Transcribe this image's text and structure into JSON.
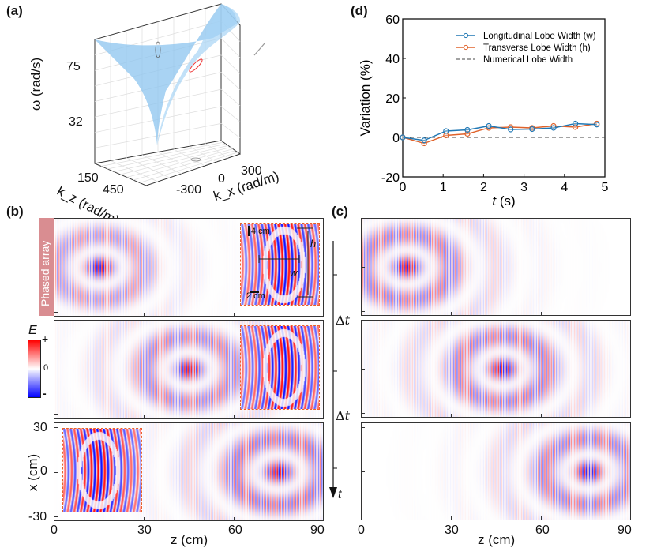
{
  "panels": {
    "a": {
      "label": "(a)",
      "zlabel": "ω (rad/s)",
      "zticks": [
        "75",
        "32"
      ],
      "kz_label": "k_z (rad/m)",
      "kz_ticks": [
        "150",
        "450"
      ],
      "kx_label": "k_x (rad/m)",
      "kx_ticks": [
        "-300",
        "0",
        "300"
      ],
      "surface_color": "#8cc4ef"
    },
    "b": {
      "label": "(b)",
      "phased_array_label": "Phased array",
      "ylabel": "x (cm)",
      "yticks": [
        "30",
        "0",
        "-30"
      ],
      "xlabel": "z (cm)",
      "xticks": [
        "0",
        "30",
        "60",
        "90"
      ],
      "colorbar": {
        "title": "E",
        "plus": "+",
        "zero": "0",
        "minus": "-"
      },
      "inset_annotations": {
        "h": "h",
        "w": "w",
        "scale_v": "4 cm",
        "scale_h": "2 cm"
      },
      "time_axis": {
        "step1": "Δt",
        "step2": "Δt",
        "label": "t"
      },
      "frames": [
        {
          "pulse_center_z_cm": 15,
          "inset_position": "right"
        },
        {
          "pulse_center_z_cm": 45,
          "inset_position": "right"
        },
        {
          "pulse_center_z_cm": 75,
          "inset_position": "left"
        }
      ]
    },
    "c": {
      "label": "(c)",
      "xlabel": "z (cm)",
      "xticks": [
        "0",
        "30",
        "60",
        "90"
      ],
      "frames": [
        {
          "pulse_center_z_cm": 15
        },
        {
          "pulse_center_z_cm": 47
        },
        {
          "pulse_center_z_cm": 76
        }
      ]
    },
    "d": {
      "label": "(d)"
    }
  },
  "chart_data": {
    "type": "line",
    "title": "",
    "xlabel": "t (s)",
    "ylabel": "Variation (%)",
    "xlim": [
      0,
      5
    ],
    "ylim": [
      -20,
      60
    ],
    "xticks": [
      0,
      1,
      2,
      3,
      4,
      5
    ],
    "yticks": [
      -20,
      0,
      20,
      40,
      60
    ],
    "grid": false,
    "legend_position": "top-right",
    "x": [
      0,
      0.53,
      1.07,
      1.6,
      2.13,
      2.67,
      3.2,
      3.73,
      4.27,
      4.8
    ],
    "series": [
      {
        "name": "Longitudinal Lobe Width (w)",
        "color": "#1f77b4",
        "marker": "circle",
        "values": [
          0,
          -1.5,
          3.2,
          3.8,
          5.8,
          4.0,
          4.2,
          4.8,
          7.0,
          6.5
        ]
      },
      {
        "name": "Transverse Lobe Width (h)",
        "color": "#e0622a",
        "marker": "circle",
        "values": [
          0,
          -3,
          1.0,
          1.8,
          4.8,
          5.2,
          4.8,
          5.8,
          5.2,
          7.0
        ]
      },
      {
        "name": "Numerical Lobe Width",
        "color": "#444444",
        "style": "dashed",
        "values": [
          0,
          0,
          0,
          0,
          0,
          0,
          0,
          0,
          0,
          0
        ]
      }
    ]
  }
}
